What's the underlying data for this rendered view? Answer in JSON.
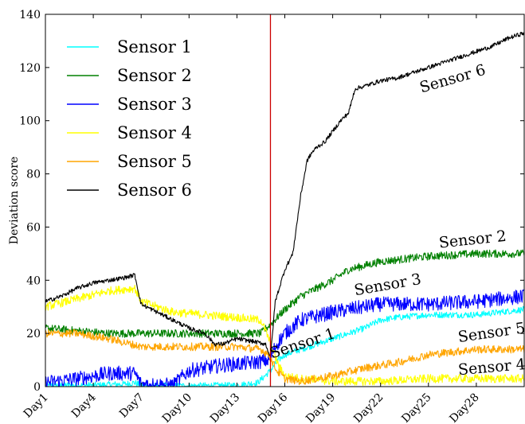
{
  "chart_data": {
    "type": "line",
    "title": "",
    "xlabel": "",
    "ylabel": "Deviation score",
    "ylim": [
      0,
      140
    ],
    "xlim": [
      1,
      31
    ],
    "yticks": [
      0,
      20,
      40,
      60,
      80,
      100,
      120,
      140
    ],
    "xticks": [
      {
        "x": 1,
        "label": "Day1"
      },
      {
        "x": 4,
        "label": "Day4"
      },
      {
        "x": 7,
        "label": "Day7"
      },
      {
        "x": 10,
        "label": "Day10"
      },
      {
        "x": 13,
        "label": "Day13"
      },
      {
        "x": 16,
        "label": "Day16"
      },
      {
        "x": 19,
        "label": "Day19"
      },
      {
        "x": 22,
        "label": "Day22"
      },
      {
        "x": 25,
        "label": "Day25"
      },
      {
        "x": 28,
        "label": "Day28"
      }
    ],
    "vline": {
      "x": 15.1,
      "color": "#cc0000"
    },
    "grid": false,
    "legend": "top-left",
    "series": [
      {
        "name": "Sensor 1",
        "color": "#00ffff",
        "noise": 1.2,
        "x": [
          1,
          4,
          6,
          6.6,
          7,
          10,
          13,
          14.3,
          15.1,
          15.6,
          16,
          17,
          18,
          19,
          20,
          21,
          22,
          23,
          25,
          28,
          31
        ],
        "y": [
          0.5,
          0.5,
          1.0,
          1.5,
          0.3,
          0.3,
          0.5,
          1.5,
          6,
          10,
          12,
          14,
          16,
          18,
          20,
          22,
          25,
          26,
          27,
          27,
          29
        ]
      },
      {
        "name": "Sensor 2",
        "color": "#008000",
        "noise": 1.5,
        "x": [
          1,
          3,
          5,
          7,
          10,
          13,
          14.5,
          15.2,
          16,
          17,
          18,
          19,
          20,
          22,
          25,
          28,
          31
        ],
        "y": [
          22,
          21,
          20,
          20,
          20,
          20,
          20,
          24,
          29,
          34,
          37,
          40,
          44,
          47,
          49,
          50,
          50
        ]
      },
      {
        "name": "Sensor 3",
        "color": "#0000ff",
        "noise": 2.8,
        "x": [
          1,
          3,
          5,
          6.6,
          7,
          9,
          10,
          12,
          14,
          15,
          15.5,
          16,
          17,
          19,
          22,
          25,
          28,
          31
        ],
        "y": [
          1.5,
          3,
          5,
          5,
          1,
          0.5,
          6,
          8,
          9,
          10,
          16,
          20,
          25,
          28,
          31,
          31,
          32,
          34
        ]
      },
      {
        "name": "Sensor 4",
        "color": "#ffff00",
        "noise": 1.6,
        "x": [
          1,
          3,
          5,
          6.6,
          7,
          9,
          11,
          13,
          14.5,
          15,
          15.6,
          16,
          17,
          19,
          22,
          25,
          28,
          31
        ],
        "y": [
          30,
          33,
          36,
          37,
          32,
          28,
          27,
          26,
          25,
          18,
          8,
          4,
          3,
          2,
          2,
          3,
          3,
          3
        ]
      },
      {
        "name": "Sensor 5",
        "color": "#ffa500",
        "noise": 1.5,
        "x": [
          1,
          3,
          5,
          7,
          9,
          11,
          13,
          14.5,
          15,
          15.5,
          16,
          17,
          19,
          21,
          23,
          25,
          28,
          31
        ],
        "y": [
          20,
          20,
          18,
          15,
          15,
          15,
          15,
          14,
          12,
          6,
          3,
          2,
          4,
          7,
          9,
          12,
          14,
          14
        ]
      },
      {
        "name": "Sensor 6",
        "color": "#000000",
        "noise": 0.8,
        "x": [
          1,
          2,
          3,
          4,
          5,
          6,
          6.6,
          7,
          8,
          10,
          11,
          11.6,
          12.1,
          13,
          14,
          14.8,
          15.1,
          15.4,
          16,
          16.5,
          17,
          17.4,
          17.7,
          18,
          18.5,
          19,
          19.5,
          20,
          20.4,
          21,
          22,
          23,
          24,
          25,
          26,
          27,
          28,
          29,
          30,
          31
        ],
        "y": [
          32,
          34,
          37,
          39,
          40,
          41,
          42,
          31,
          28,
          22,
          20,
          16,
          16,
          18,
          17,
          16,
          11,
          32,
          44,
          50,
          72,
          85,
          88,
          90,
          92,
          96,
          100,
          103,
          112,
          113,
          115,
          116,
          118,
          120,
          122,
          124,
          126,
          128,
          131,
          133
        ]
      }
    ],
    "annotations": [
      {
        "text": "Sensor 6",
        "x": 26.6,
        "y": 114,
        "rotate": -16
      },
      {
        "text": "Sensor 2",
        "x": 27.8,
        "y": 53.5,
        "rotate": -6
      },
      {
        "text": "Sensor 3",
        "x": 22.5,
        "y": 36.5,
        "rotate": -10
      },
      {
        "text": "Sensor 1",
        "x": 17.2,
        "y": 14.5,
        "rotate": -18
      },
      {
        "text": "Sensor 5",
        "x": 29.0,
        "y": 18.5,
        "rotate": -8
      },
      {
        "text": "Sensor 4",
        "x": 29.0,
        "y": 5.5,
        "rotate": -5
      }
    ]
  }
}
